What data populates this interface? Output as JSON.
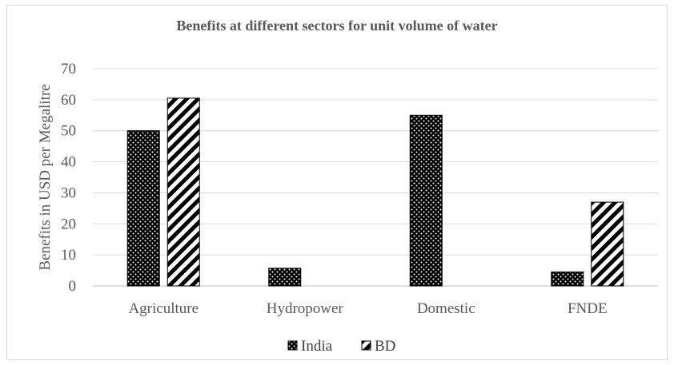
{
  "chart_data": {
    "type": "bar",
    "title": "Benefits at different sectors for unit volume of water",
    "xlabel": "",
    "ylabel": "Benefits in USD per Megalitre",
    "ylim": [
      0,
      70
    ],
    "yticks": [
      0,
      10,
      20,
      30,
      40,
      50,
      60,
      70
    ],
    "categories": [
      "Agriculture",
      "Hydropower",
      "Domestic",
      "FNDE"
    ],
    "series": [
      {
        "name": "India",
        "values": [
          50,
          5.7,
          55,
          4.5
        ],
        "pattern": "dots"
      },
      {
        "name": "BD",
        "values": [
          60.5,
          0,
          0,
          27
        ],
        "pattern": "stripes"
      }
    ],
    "grid": true,
    "legend_position": "bottom"
  }
}
